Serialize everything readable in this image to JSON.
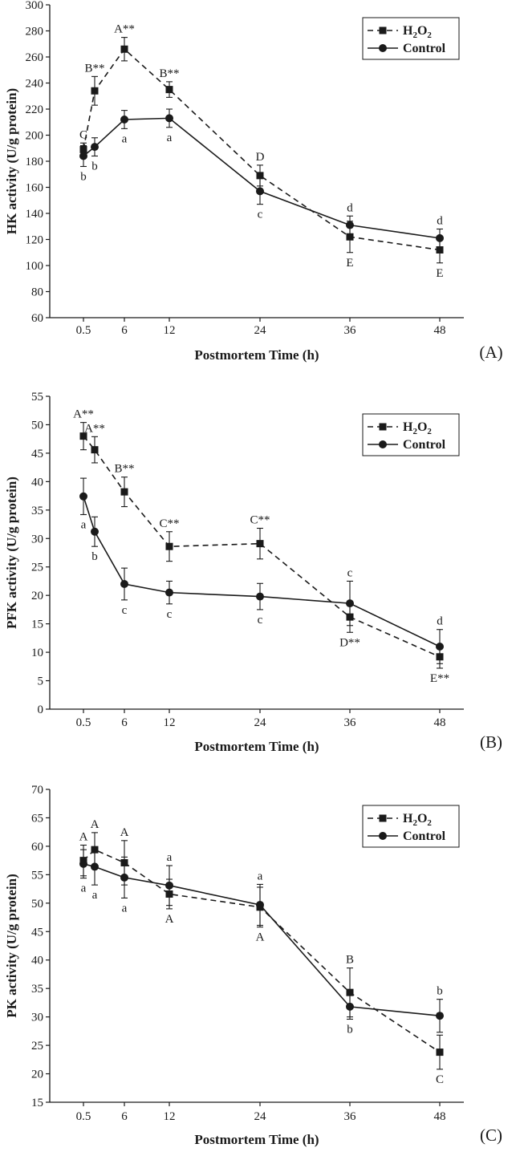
{
  "chart_data": [
    {
      "type": "line",
      "panel_label": "(A)",
      "ylabel": "HK activity (U/g protein)",
      "xlabel": "Postmortem Time (h)",
      "ylim": [
        60,
        300
      ],
      "yticks": [
        "60",
        "80",
        "100",
        "120",
        "140",
        "160",
        "180",
        "200",
        "220",
        "240",
        "260",
        "280",
        "300"
      ],
      "xticks": [
        "0.5",
        "6",
        "12",
        "24",
        "36",
        "48"
      ],
      "legend_position": "top-right",
      "series": [
        {
          "name": "H2O2",
          "name_sub": "2",
          "name_main": "H",
          "name_mid": "O",
          "style": "dashed-square",
          "points": [
            {
              "x": "0.5",
              "y": 189,
              "err": 5,
              "label": "C",
              "label_pos": "above"
            },
            {
              "x": "3",
              "y": 234,
              "err": 11,
              "label": "B**",
              "label_pos": "above"
            },
            {
              "x": "6",
              "y": 266,
              "err": 9,
              "label": "A**",
              "label_pos": "above"
            },
            {
              "x": "12",
              "y": 235,
              "err": 6,
              "label": "B**",
              "label_pos": "above"
            },
            {
              "x": "24",
              "y": 169,
              "err": 8,
              "label": "D",
              "label_pos": "above"
            },
            {
              "x": "36",
              "y": 122,
              "err": 12,
              "label": "E",
              "label_pos": "below"
            },
            {
              "x": "48",
              "y": 112,
              "err": 10,
              "label": "E",
              "label_pos": "below"
            }
          ]
        },
        {
          "name": "Control",
          "style": "solid-circle",
          "points": [
            {
              "x": "0.5",
              "y": 184,
              "err": 8,
              "label": "b",
              "label_pos": "below"
            },
            {
              "x": "3",
              "y": 191,
              "err": 7,
              "label": "b",
              "label_pos": "below"
            },
            {
              "x": "6",
              "y": 212,
              "err": 7,
              "label": "a",
              "label_pos": "below"
            },
            {
              "x": "12",
              "y": 213,
              "err": 7,
              "label": "a",
              "label_pos": "below"
            },
            {
              "x": "24",
              "y": 157,
              "err": 10,
              "label": "c",
              "label_pos": "below"
            },
            {
              "x": "36",
              "y": 131,
              "err": 7,
              "label": "d",
              "label_pos": "above"
            },
            {
              "x": "48",
              "y": 121,
              "err": 7,
              "label": "d",
              "label_pos": "above"
            }
          ]
        }
      ]
    },
    {
      "type": "line",
      "panel_label": "(B)",
      "ylabel": "PFK activity (U/g protein)",
      "xlabel": "Postmortem Time (h)",
      "ylim": [
        0,
        55
      ],
      "yticks": [
        "0",
        "5",
        "10",
        "15",
        "20",
        "25",
        "30",
        "35",
        "40",
        "45",
        "50",
        "55"
      ],
      "xticks": [
        "0.5",
        "6",
        "12",
        "24",
        "36",
        "48"
      ],
      "legend_position": "top-right",
      "series": [
        {
          "name": "H2O2",
          "name_sub": "2",
          "name_main": "H",
          "name_mid": "O",
          "style": "dashed-square",
          "points": [
            {
              "x": "0.5",
              "y": 48.0,
              "err": 2.4,
              "label": "A**",
              "label_pos": "above"
            },
            {
              "x": "3",
              "y": 45.6,
              "err": 2.3,
              "label": "A**",
              "label_pos": "above"
            },
            {
              "x": "6",
              "y": 38.2,
              "err": 2.6,
              "label": "B**",
              "label_pos": "above"
            },
            {
              "x": "12",
              "y": 28.6,
              "err": 2.6,
              "label": "C**",
              "label_pos": "above"
            },
            {
              "x": "24",
              "y": 29.1,
              "err": 2.7,
              "label": "C**",
              "label_pos": "above"
            },
            {
              "x": "36",
              "y": 16.2,
              "err": 2.7,
              "label": "D**",
              "label_pos": "below"
            },
            {
              "x": "48",
              "y": 9.2,
              "err": 2.0,
              "label": "E**",
              "label_pos": "below"
            }
          ]
        },
        {
          "name": "Control",
          "style": "solid-circle",
          "points": [
            {
              "x": "0.5",
              "y": 37.4,
              "err": 3.2,
              "label": "a",
              "label_pos": "below"
            },
            {
              "x": "3",
              "y": 31.2,
              "err": 2.6,
              "label": "b",
              "label_pos": "below"
            },
            {
              "x": "6",
              "y": 22.0,
              "err": 2.8,
              "label": "c",
              "label_pos": "below"
            },
            {
              "x": "12",
              "y": 20.5,
              "err": 2.0,
              "label": "c",
              "label_pos": "below"
            },
            {
              "x": "24",
              "y": 19.8,
              "err": 2.3,
              "label": "c",
              "label_pos": "below"
            },
            {
              "x": "36",
              "y": 18.6,
              "err": 3.9,
              "label": "c",
              "label_pos": "above"
            },
            {
              "x": "48",
              "y": 11.0,
              "err": 3.0,
              "label": "d",
              "label_pos": "above"
            }
          ]
        }
      ]
    },
    {
      "type": "line",
      "panel_label": "(C)",
      "ylabel": "PK activity (U/g protein)",
      "xlabel": "Postmortem Time (h)",
      "ylim": [
        15,
        70
      ],
      "yticks": [
        "15",
        "20",
        "25",
        "30",
        "35",
        "40",
        "45",
        "50",
        "55",
        "60",
        "65",
        "70"
      ],
      "xticks": [
        "0.5",
        "6",
        "12",
        "24",
        "36",
        "48"
      ],
      "legend_position": "top-right",
      "series": [
        {
          "name": "H2O2",
          "name_sub": "2",
          "name_main": "H",
          "name_mid": "O",
          "style": "dashed-square",
          "points": [
            {
              "x": "0.5",
              "y": 57.5,
              "err": 2.7,
              "label": "A",
              "label_pos": "above"
            },
            {
              "x": "3",
              "y": 59.4,
              "err": 3.0,
              "label": "A",
              "label_pos": "above"
            },
            {
              "x": "6",
              "y": 57.1,
              "err": 3.9,
              "label": "A",
              "label_pos": "above"
            },
            {
              "x": "12",
              "y": 51.6,
              "err": 2.6,
              "label": "A",
              "label_pos": "below"
            },
            {
              "x": "24",
              "y": 49.3,
              "err": 3.5,
              "label": "A",
              "label_pos": "below"
            },
            {
              "x": "36",
              "y": 34.3,
              "err": 4.3,
              "label": "B",
              "label_pos": "above"
            },
            {
              "x": "48",
              "y": 23.8,
              "err": 3.0,
              "label": "C",
              "label_pos": "below"
            }
          ]
        },
        {
          "name": "Control",
          "style": "solid-circle",
          "points": [
            {
              "x": "0.5",
              "y": 56.9,
              "err": 2.5,
              "label": "a",
              "label_pos": "below"
            },
            {
              "x": "3",
              "y": 56.4,
              "err": 3.2,
              "label": "a",
              "label_pos": "below"
            },
            {
              "x": "6",
              "y": 54.5,
              "err": 3.6,
              "label": "a",
              "label_pos": "below"
            },
            {
              "x": "12",
              "y": 53.1,
              "err": 3.5,
              "label": "a",
              "label_pos": "above"
            },
            {
              "x": "24",
              "y": 49.7,
              "err": 3.6,
              "label": "a",
              "label_pos": "above"
            },
            {
              "x": "36",
              "y": 31.8,
              "err": 2.2,
              "label": "b",
              "label_pos": "below"
            },
            {
              "x": "48",
              "y": 30.2,
              "err": 2.9,
              "label": "b",
              "label_pos": "above"
            }
          ]
        }
      ]
    }
  ]
}
